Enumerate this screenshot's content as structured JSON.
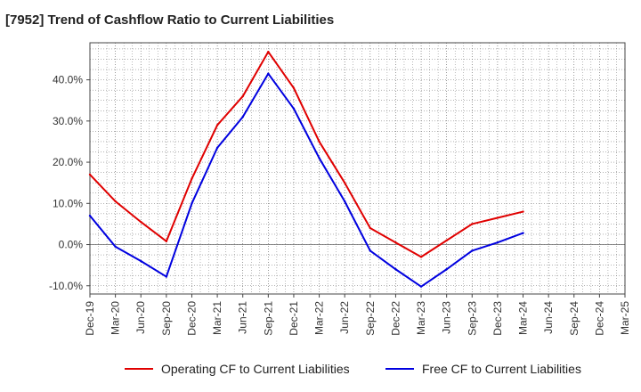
{
  "title": "[7952]  Trend of Cashflow Ratio to Current Liabilities",
  "chart_data": {
    "type": "line",
    "title": "[7952]  Trend of Cashflow Ratio to Current Liabilities",
    "xlabel": "",
    "ylabel": "",
    "categories": [
      "Dec-19",
      "Mar-20",
      "Jun-20",
      "Sep-20",
      "Dec-20",
      "Mar-21",
      "Jun-21",
      "Sep-21",
      "Dec-21",
      "Mar-22",
      "Jun-22",
      "Sep-22",
      "Dec-22",
      "Mar-23",
      "Jun-23",
      "Sep-23",
      "Dec-23",
      "Mar-24",
      "Jun-24",
      "Sep-24",
      "Dec-24",
      "Mar-25"
    ],
    "yticks": [
      -10,
      0,
      10,
      20,
      30,
      40
    ],
    "ytick_labels": [
      "-10.0%",
      "0.0%",
      "10.0%",
      "20.0%",
      "30.0%",
      "40.0%"
    ],
    "ylim": [
      -12.0,
      49.0
    ],
    "grid": true,
    "legend_position": "bottom",
    "series": [
      {
        "name": "Operating CF to Current Liabilities",
        "color": "#e00000",
        "values": [
          17.0,
          10.5,
          5.5,
          0.8,
          16.0,
          29.0,
          36.0,
          46.8,
          38.0,
          25.0,
          15.0,
          4.0,
          0.5,
          -3.0,
          1.0,
          5.0,
          6.5,
          8.0,
          null,
          null,
          null,
          null
        ]
      },
      {
        "name": "Free CF to Current Liabilities",
        "color": "#0000e0",
        "values": [
          7.0,
          -0.5,
          -4.0,
          -7.8,
          10.0,
          23.5,
          31.0,
          41.5,
          33.0,
          21.0,
          10.5,
          -1.5,
          -6.0,
          -10.2,
          -6.0,
          -1.5,
          0.5,
          2.8,
          null,
          null,
          null,
          null
        ]
      }
    ]
  }
}
